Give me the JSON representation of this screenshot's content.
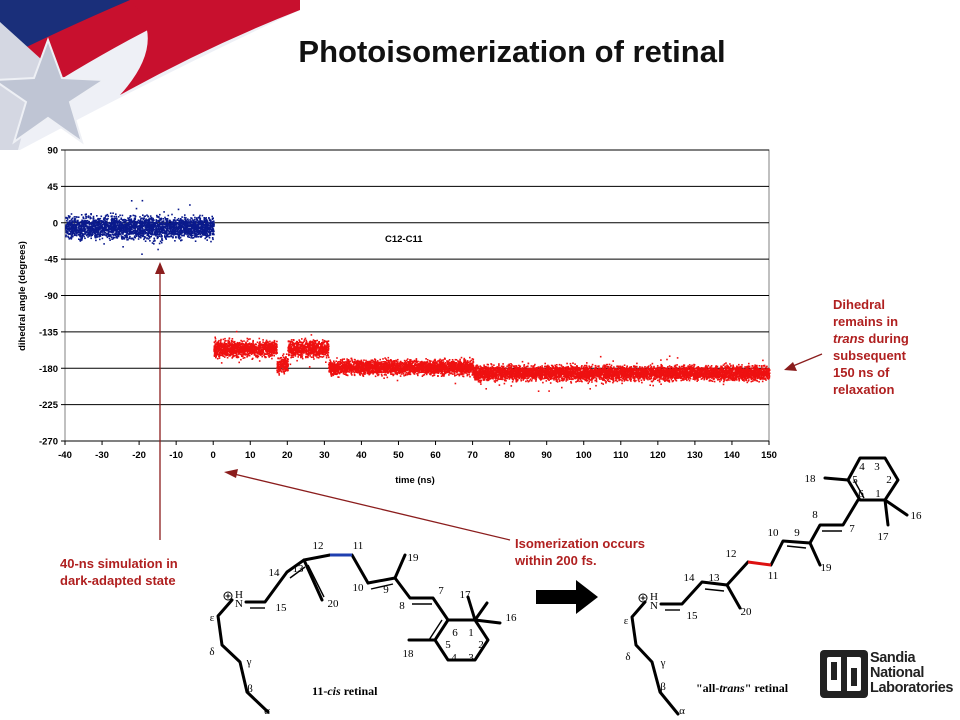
{
  "slide": {
    "title": "Photoisomerization of retinal"
  },
  "notes": {
    "dark_adapted_l1": "40-ns simulation in",
    "dark_adapted_l2": "dark-adapted state",
    "isomerization_l1": "Isomerization occurs",
    "isomerization_l2": "within 200 fs.",
    "relax_l1": "Dihedral",
    "relax_l2": "remains in",
    "relax_l3_italic": "trans",
    "relax_l3_rest": " during",
    "relax_l4": "subsequent",
    "relax_l5": "150 ns of",
    "relax_l6": "relaxation"
  },
  "chart_data": {
    "type": "scatter",
    "xlabel": "time (ns)",
    "ylabel": "dihedral angle (degrees)",
    "xlim": [
      -40,
      150
    ],
    "ylim": [
      -270,
      90
    ],
    "xticks": [
      -40,
      -30,
      -20,
      -10,
      0,
      10,
      20,
      30,
      40,
      50,
      60,
      70,
      80,
      90,
      100,
      110,
      120,
      130,
      140,
      150
    ],
    "yticks": [
      90,
      45,
      0,
      -45,
      -90,
      -135,
      -180,
      -225,
      -270
    ],
    "grid": "horizontal",
    "annotation": "C12-C11",
    "colors": {
      "cis": "#0a1a8c",
      "trans": "#ee1111"
    },
    "series": [
      {
        "segments": [
          {
            "x0": -40,
            "x1": 0,
            "mean": -5,
            "spread": 12
          }
        ]
      },
      {
        "segments": [
          {
            "x0": 0,
            "x1": 17,
            "mean": -155,
            "spread": 9
          },
          {
            "x0": 17,
            "x1": 20,
            "mean": -175,
            "spread": 9
          },
          {
            "x0": 20,
            "x1": 31,
            "mean": -155,
            "spread": 9
          },
          {
            "x0": 31,
            "x1": 70,
            "mean": -178,
            "spread": 8
          },
          {
            "x0": 70,
            "x1": 150,
            "mean": -185,
            "spread": 8
          }
        ]
      }
    ]
  },
  "molecules": {
    "cis": {
      "caption_pre": "11-",
      "caption_italic": "cis",
      "caption_post": " retinal",
      "labels": [
        "12",
        "11",
        "14",
        "13",
        "10",
        "9",
        "19",
        "7",
        "17",
        "8",
        "16",
        "20",
        "15",
        "6",
        "1",
        "5",
        "2",
        "18",
        "4",
        "3",
        "H",
        "N",
        "ε",
        "δ",
        "γ",
        "β",
        "α"
      ]
    },
    "trans": {
      "caption_pre": "\"all-",
      "caption_italic": "trans",
      "caption_post": "\" retinal",
      "labels": [
        "18",
        "4",
        "3",
        "5",
        "2",
        "6",
        "1",
        "8",
        "16",
        "10",
        "9",
        "7",
        "17",
        "12",
        "11",
        "19",
        "14",
        "13",
        "20",
        "15",
        "H",
        "N",
        "ε",
        "δ",
        "γ",
        "β",
        "α"
      ]
    }
  },
  "logo": {
    "line1": "Sandia",
    "line2": "National",
    "line3": "Laboratories"
  }
}
